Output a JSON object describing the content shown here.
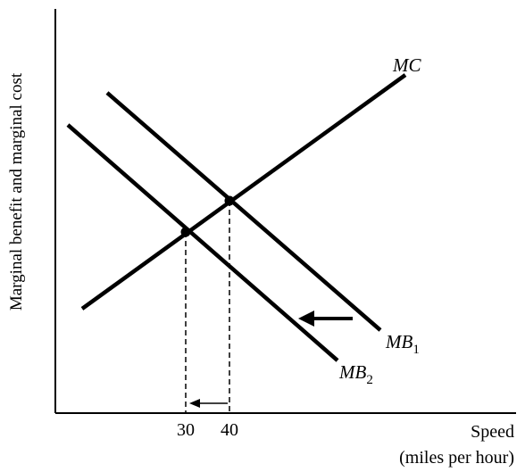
{
  "chart_data": {
    "type": "line",
    "ylabel": "Marginal benefit and marginal cost",
    "xlabel_line1": "Speed",
    "xlabel_line2": "(miles per hour)",
    "x_ticks": [
      "30",
      "40"
    ],
    "equilibria": [
      {
        "x": 40,
        "on": [
          "MC",
          "MB1"
        ]
      },
      {
        "x": 30,
        "on": [
          "MC",
          "MB2"
        ]
      }
    ],
    "series": [
      {
        "name": "MC",
        "label_main": "MC",
        "label_sub": "",
        "shape": "upward-sloping"
      },
      {
        "name": "MB1",
        "label_main": "MB",
        "label_sub": "1",
        "shape": "downward-sloping"
      },
      {
        "name": "MB2",
        "label_main": "MB",
        "label_sub": "2",
        "shape": "downward-sloping"
      }
    ],
    "annotations": [
      {
        "type": "arrow",
        "meaning": "demand shifts left from MB1 to MB2"
      },
      {
        "type": "arrow",
        "meaning": "speed falls from 40 to 30"
      },
      {
        "type": "dashed-line",
        "meaning": "drop lines to x-axis at equilibria"
      }
    ],
    "grid": false,
    "legend": "none"
  },
  "colors": {
    "line": "#000000",
    "background": "#ffffff"
  }
}
